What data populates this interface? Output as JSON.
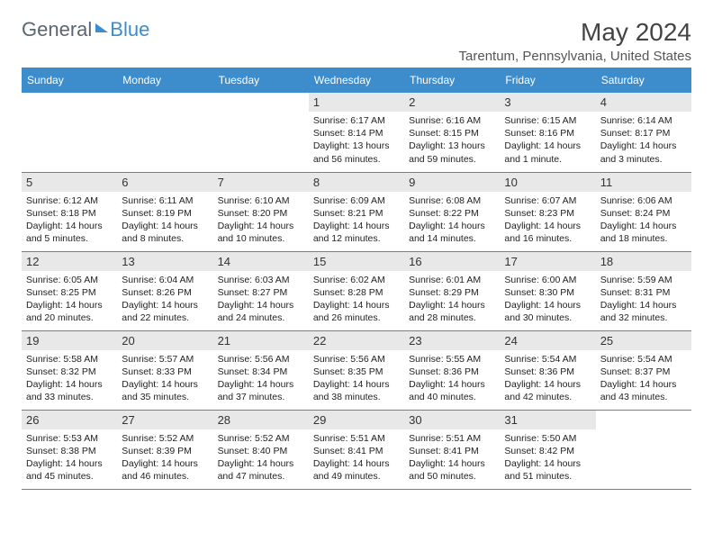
{
  "brand": {
    "text1": "General",
    "text2": "Blue"
  },
  "header": {
    "month": "May 2024",
    "location": "Tarentum, Pennsylvania, United States"
  },
  "dayNames": [
    "Sunday",
    "Monday",
    "Tuesday",
    "Wednesday",
    "Thursday",
    "Friday",
    "Saturday"
  ],
  "colors": {
    "accent": "#3d8ccc",
    "headerBg": "#3d8ccc",
    "dayNumBg": "#e8e8e8"
  },
  "weeks": [
    [
      null,
      null,
      null,
      {
        "n": "1",
        "sr": "6:17 AM",
        "ss": "8:14 PM",
        "dl": "13 hours and 56 minutes."
      },
      {
        "n": "2",
        "sr": "6:16 AM",
        "ss": "8:15 PM",
        "dl": "13 hours and 59 minutes."
      },
      {
        "n": "3",
        "sr": "6:15 AM",
        "ss": "8:16 PM",
        "dl": "14 hours and 1 minute."
      },
      {
        "n": "4",
        "sr": "6:14 AM",
        "ss": "8:17 PM",
        "dl": "14 hours and 3 minutes."
      }
    ],
    [
      {
        "n": "5",
        "sr": "6:12 AM",
        "ss": "8:18 PM",
        "dl": "14 hours and 5 minutes."
      },
      {
        "n": "6",
        "sr": "6:11 AM",
        "ss": "8:19 PM",
        "dl": "14 hours and 8 minutes."
      },
      {
        "n": "7",
        "sr": "6:10 AM",
        "ss": "8:20 PM",
        "dl": "14 hours and 10 minutes."
      },
      {
        "n": "8",
        "sr": "6:09 AM",
        "ss": "8:21 PM",
        "dl": "14 hours and 12 minutes."
      },
      {
        "n": "9",
        "sr": "6:08 AM",
        "ss": "8:22 PM",
        "dl": "14 hours and 14 minutes."
      },
      {
        "n": "10",
        "sr": "6:07 AM",
        "ss": "8:23 PM",
        "dl": "14 hours and 16 minutes."
      },
      {
        "n": "11",
        "sr": "6:06 AM",
        "ss": "8:24 PM",
        "dl": "14 hours and 18 minutes."
      }
    ],
    [
      {
        "n": "12",
        "sr": "6:05 AM",
        "ss": "8:25 PM",
        "dl": "14 hours and 20 minutes."
      },
      {
        "n": "13",
        "sr": "6:04 AM",
        "ss": "8:26 PM",
        "dl": "14 hours and 22 minutes."
      },
      {
        "n": "14",
        "sr": "6:03 AM",
        "ss": "8:27 PM",
        "dl": "14 hours and 24 minutes."
      },
      {
        "n": "15",
        "sr": "6:02 AM",
        "ss": "8:28 PM",
        "dl": "14 hours and 26 minutes."
      },
      {
        "n": "16",
        "sr": "6:01 AM",
        "ss": "8:29 PM",
        "dl": "14 hours and 28 minutes."
      },
      {
        "n": "17",
        "sr": "6:00 AM",
        "ss": "8:30 PM",
        "dl": "14 hours and 30 minutes."
      },
      {
        "n": "18",
        "sr": "5:59 AM",
        "ss": "8:31 PM",
        "dl": "14 hours and 32 minutes."
      }
    ],
    [
      {
        "n": "19",
        "sr": "5:58 AM",
        "ss": "8:32 PM",
        "dl": "14 hours and 33 minutes."
      },
      {
        "n": "20",
        "sr": "5:57 AM",
        "ss": "8:33 PM",
        "dl": "14 hours and 35 minutes."
      },
      {
        "n": "21",
        "sr": "5:56 AM",
        "ss": "8:34 PM",
        "dl": "14 hours and 37 minutes."
      },
      {
        "n": "22",
        "sr": "5:56 AM",
        "ss": "8:35 PM",
        "dl": "14 hours and 38 minutes."
      },
      {
        "n": "23",
        "sr": "5:55 AM",
        "ss": "8:36 PM",
        "dl": "14 hours and 40 minutes."
      },
      {
        "n": "24",
        "sr": "5:54 AM",
        "ss": "8:36 PM",
        "dl": "14 hours and 42 minutes."
      },
      {
        "n": "25",
        "sr": "5:54 AM",
        "ss": "8:37 PM",
        "dl": "14 hours and 43 minutes."
      }
    ],
    [
      {
        "n": "26",
        "sr": "5:53 AM",
        "ss": "8:38 PM",
        "dl": "14 hours and 45 minutes."
      },
      {
        "n": "27",
        "sr": "5:52 AM",
        "ss": "8:39 PM",
        "dl": "14 hours and 46 minutes."
      },
      {
        "n": "28",
        "sr": "5:52 AM",
        "ss": "8:40 PM",
        "dl": "14 hours and 47 minutes."
      },
      {
        "n": "29",
        "sr": "5:51 AM",
        "ss": "8:41 PM",
        "dl": "14 hours and 49 minutes."
      },
      {
        "n": "30",
        "sr": "5:51 AM",
        "ss": "8:41 PM",
        "dl": "14 hours and 50 minutes."
      },
      {
        "n": "31",
        "sr": "5:50 AM",
        "ss": "8:42 PM",
        "dl": "14 hours and 51 minutes."
      },
      null
    ]
  ],
  "labels": {
    "sunrise": "Sunrise:",
    "sunset": "Sunset:",
    "daylight": "Daylight:"
  }
}
